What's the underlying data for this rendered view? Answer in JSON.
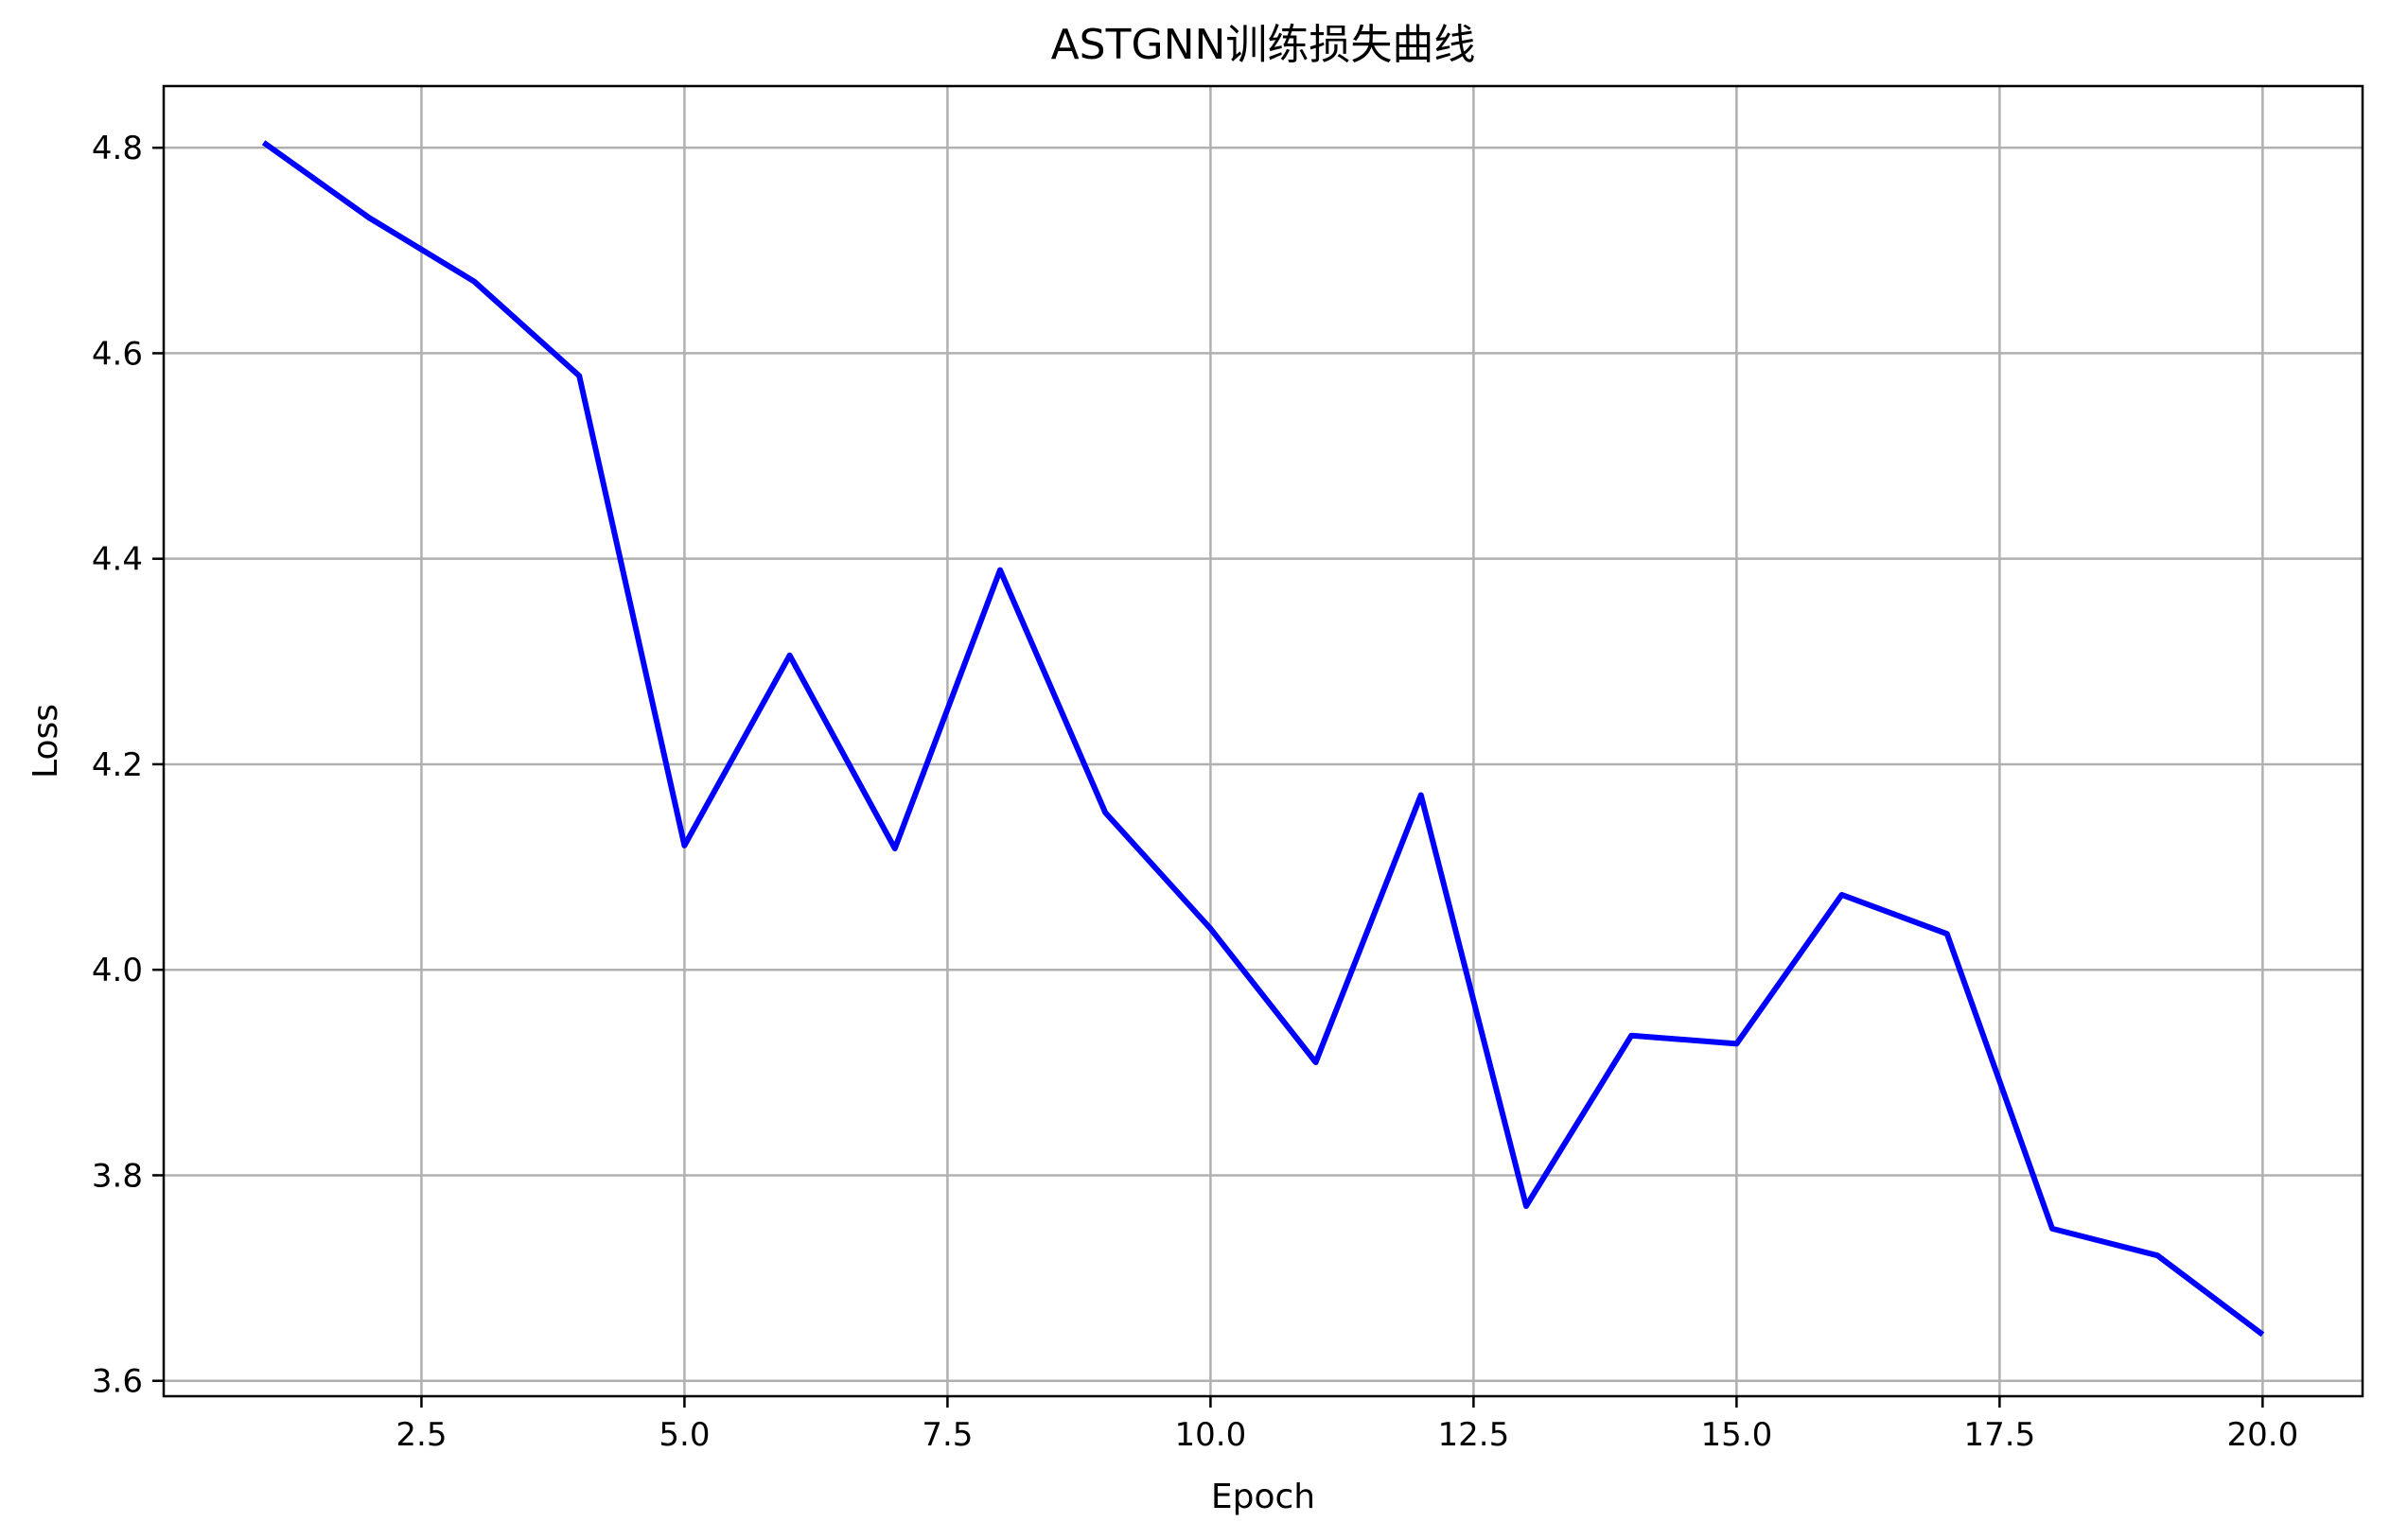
{
  "chart_data": {
    "type": "line",
    "title": "ASTGNN训练损失曲线",
    "xlabel": "Epoch",
    "ylabel": "Loss",
    "xlim": [
      0.05,
      20.95
    ],
    "ylim": [
      3.585,
      4.86
    ],
    "xticks": [
      2.5,
      5.0,
      7.5,
      10.0,
      12.5,
      15.0,
      17.5,
      20.0
    ],
    "xtick_labels": [
      "2.5",
      "5.0",
      "7.5",
      "10.0",
      "12.5",
      "15.0",
      "17.5",
      "20.0"
    ],
    "yticks": [
      3.6,
      3.8,
      4.0,
      4.2,
      4.4,
      4.6,
      4.8
    ],
    "ytick_labels": [
      "3.6",
      "3.8",
      "4.0",
      "4.2",
      "4.4",
      "4.6",
      "4.8"
    ],
    "grid": true,
    "series": [
      {
        "color": "#0000ff",
        "x": [
          1,
          2,
          3,
          4,
          5,
          6,
          7,
          8,
          9,
          10,
          11,
          12,
          13,
          14,
          15,
          16,
          17,
          18,
          19,
          20
        ],
        "y": [
          4.805,
          4.732,
          4.67,
          4.578,
          4.121,
          4.306,
          4.118,
          4.389,
          4.153,
          4.04,
          3.91,
          4.17,
          3.77,
          3.936,
          3.928,
          4.073,
          4.035,
          3.748,
          3.722,
          3.645
        ]
      }
    ]
  }
}
